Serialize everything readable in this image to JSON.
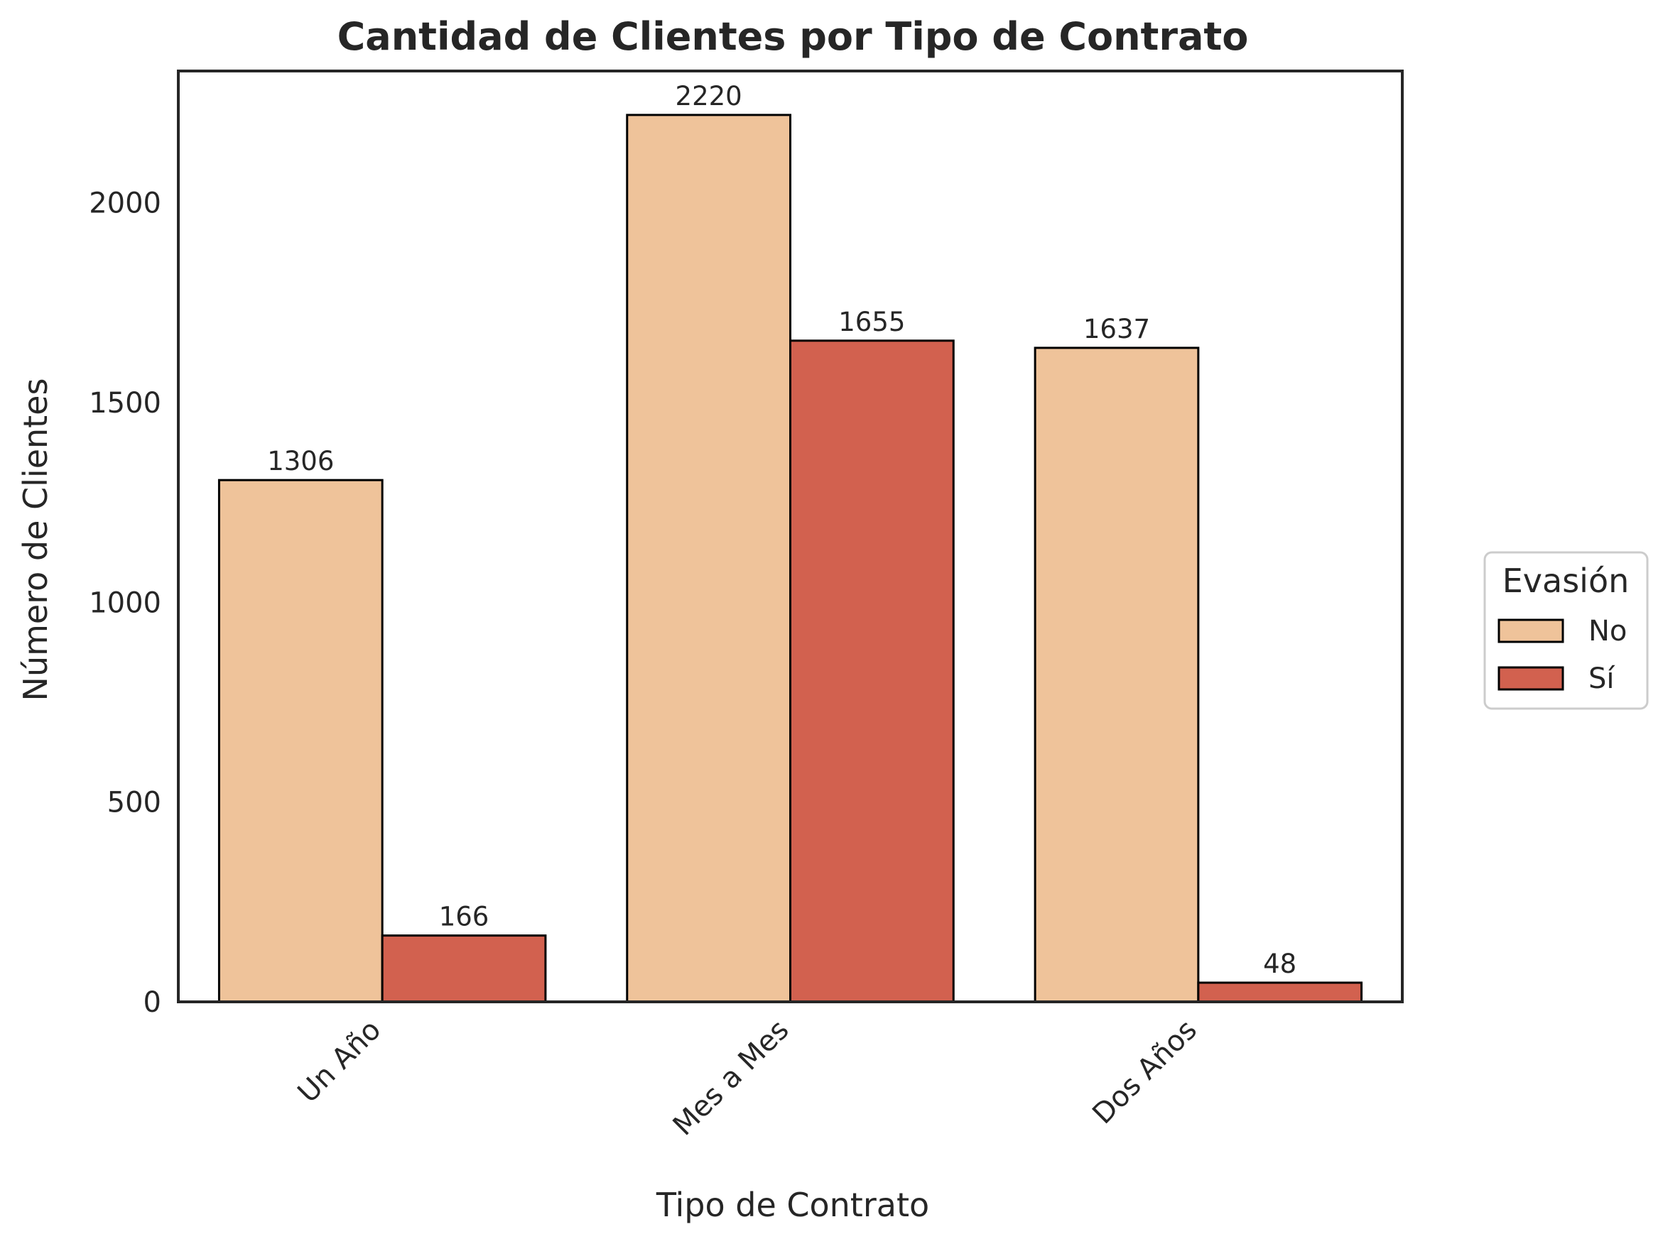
{
  "chart_data": {
    "type": "bar",
    "title": "Cantidad de Clientes por Tipo de Contrato",
    "xlabel": "Tipo de Contrato",
    "ylabel": "Número de Clientes",
    "categories": [
      "Un Año",
      "Mes a Mes",
      "Dos Años"
    ],
    "series": [
      {
        "name": "No",
        "values": [
          1306,
          2220,
          1637
        ],
        "color": "#efc39a"
      },
      {
        "name": "Sí",
        "values": [
          166,
          1655,
          48
        ],
        "color": "#d2614f"
      }
    ],
    "ylim": [
      0,
      2330
    ],
    "yticks": [
      0,
      500,
      1000,
      1500,
      2000
    ],
    "data_labels": true,
    "legend": {
      "title": "Evasión",
      "placement": "right"
    },
    "grid": false
  }
}
